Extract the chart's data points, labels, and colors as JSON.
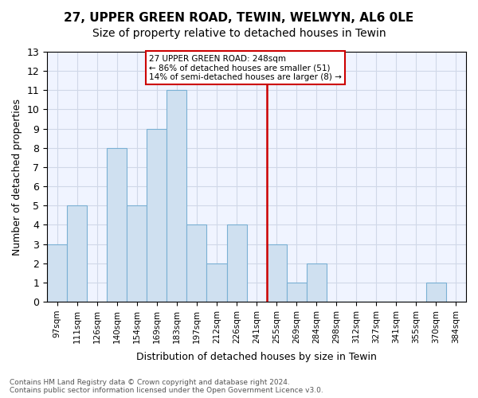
{
  "title": "27, UPPER GREEN ROAD, TEWIN, WELWYN, AL6 0LE",
  "subtitle": "Size of property relative to detached houses in Tewin",
  "xlabel": "Distribution of detached houses by size in Tewin",
  "ylabel": "Number of detached properties",
  "categories": [
    "97sqm",
    "111sqm",
    "126sqm",
    "140sqm",
    "154sqm",
    "169sqm",
    "183sqm",
    "197sqm",
    "212sqm",
    "226sqm",
    "241sqm",
    "255sqm",
    "269sqm",
    "284sqm",
    "298sqm",
    "312sqm",
    "327sqm",
    "341sqm",
    "355sqm",
    "370sqm",
    "384sqm"
  ],
  "values": [
    3,
    5,
    0,
    8,
    5,
    9,
    11,
    4,
    2,
    4,
    0,
    3,
    1,
    2,
    0,
    0,
    0,
    0,
    0,
    1,
    0
  ],
  "bar_color": "#cfe0f0",
  "bar_edge_color": "#7ab0d4",
  "red_line_x": 10.5,
  "red_line_label": "27 UPPER GREEN ROAD: 248sqm",
  "annotation_line2": "← 86% of detached houses are smaller (51)",
  "annotation_line3": "14% of semi-detached houses are larger (8) →",
  "ylim": [
    0,
    13
  ],
  "yticks": [
    0,
    1,
    2,
    3,
    4,
    5,
    6,
    7,
    8,
    9,
    10,
    11,
    12,
    13
  ],
  "grid_color": "#d0d8e8",
  "background_color": "#f0f4ff",
  "footnote": "Contains HM Land Registry data © Crown copyright and database right 2024.\nContains public sector information licensed under the Open Government Licence v3.0.",
  "title_fontsize": 11,
  "subtitle_fontsize": 10,
  "box_color": "#cc0000"
}
